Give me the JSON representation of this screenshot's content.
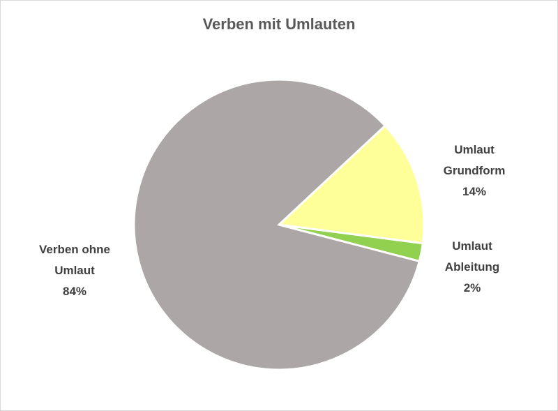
{
  "chart_data": {
    "type": "pie",
    "title": "Verben mit Umlauten",
    "categories": [
      "Umlaut Grundform",
      "Umlaut Ableitung",
      "Verben ohne Umlaut"
    ],
    "values": [
      14,
      2,
      84
    ],
    "value_labels": [
      "14%",
      "2%",
      "84%"
    ],
    "colors": [
      "#ffff99",
      "#92d050",
      "#aca7a6"
    ]
  }
}
